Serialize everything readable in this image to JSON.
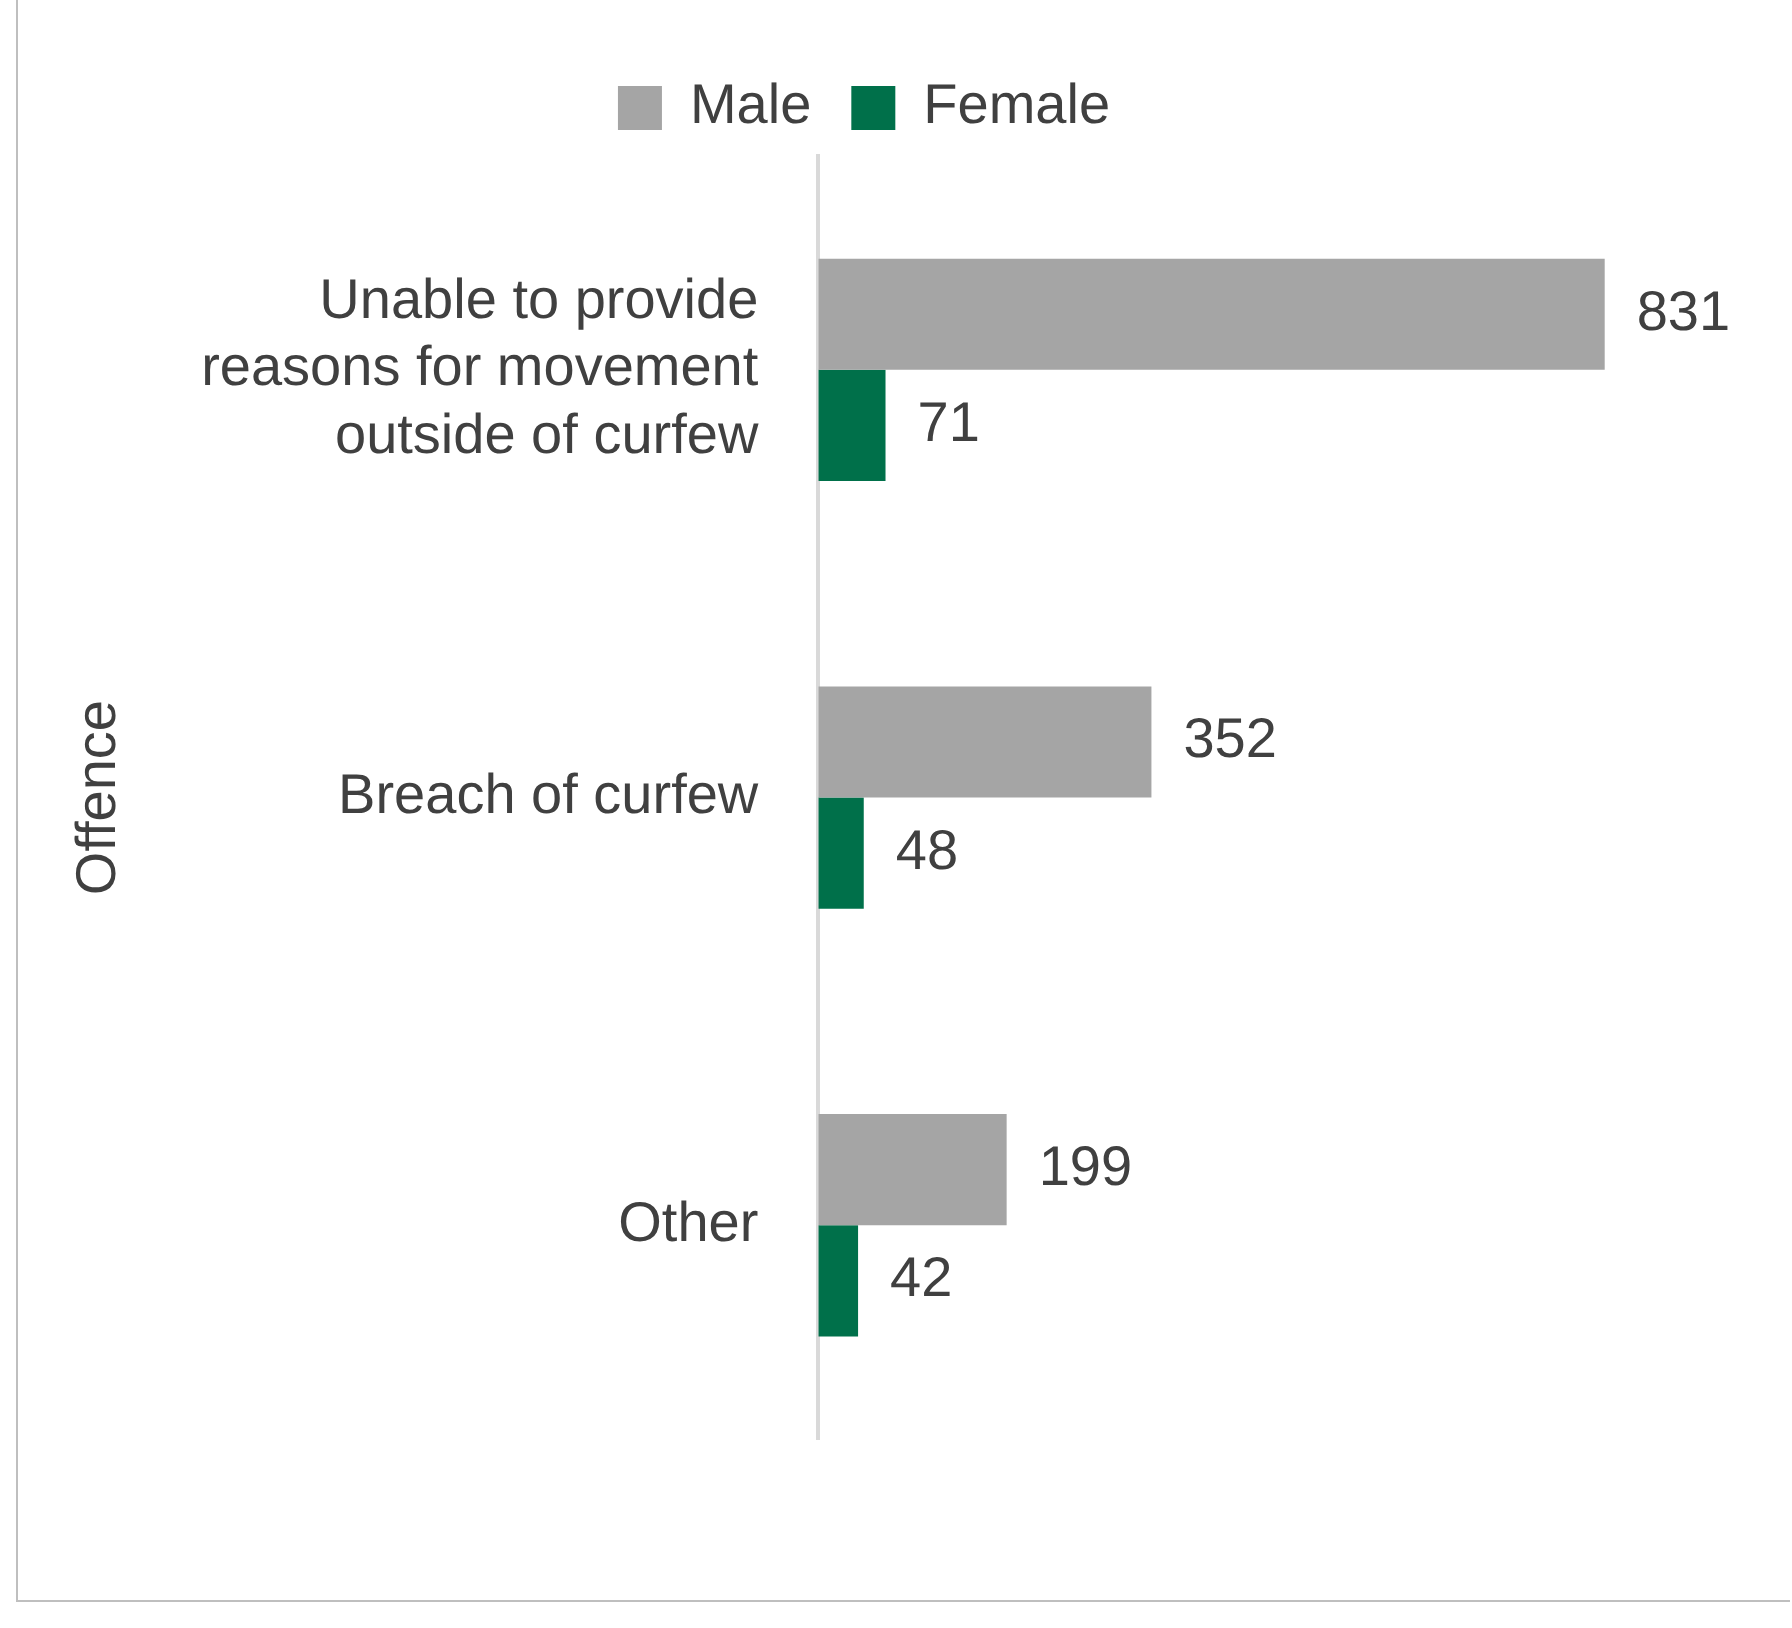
{
  "chart_data": {
    "type": "bar",
    "orientation": "horizontal",
    "ylabel": "Offence",
    "categories": [
      "Unable to provide reasons for movement outside of curfew",
      "Breach of curfew",
      "Other"
    ],
    "series": [
      {
        "name": "Male",
        "color": "#a5a5a5",
        "values": [
          831,
          352,
          199
        ]
      },
      {
        "name": "Female",
        "color": "#00704a",
        "values": [
          71,
          48,
          42
        ]
      }
    ],
    "data_labels": true,
    "legend": "top",
    "tick_labels": "y"
  }
}
